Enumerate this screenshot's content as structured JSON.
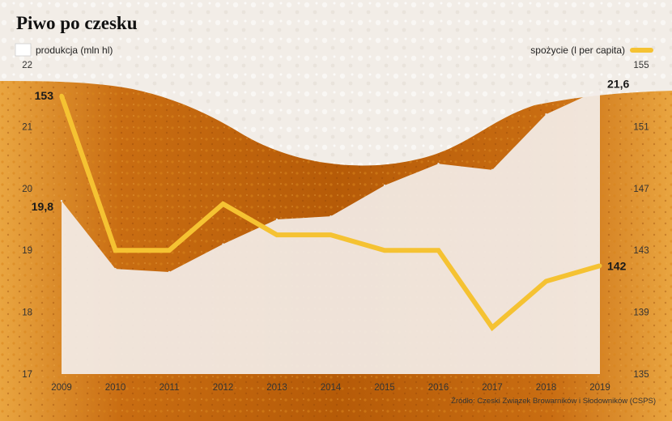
{
  "colors": {
    "beer_dark": "#b55a08",
    "beer_light": "#e39a2e",
    "foam": "#f4efe9",
    "production_area": "#f3ede8",
    "consumption_line": "#f5c232"
  },
  "chart_data": {
    "type": "area+line",
    "title": "Piwo po czesku",
    "categories": [
      "2009",
      "2010",
      "2011",
      "2012",
      "2013",
      "2014",
      "2015",
      "2016",
      "2017",
      "2018",
      "2019"
    ],
    "series": [
      {
        "name": "produkcja (mln hl)",
        "kind": "area",
        "axis": "left",
        "values": [
          19.8,
          18.7,
          18.65,
          19.1,
          19.5,
          19.55,
          20.05,
          20.4,
          20.3,
          21.2,
          21.6
        ]
      },
      {
        "name": "spożycie (l per capita)",
        "kind": "line",
        "axis": "right",
        "values": [
          153,
          143,
          143,
          146,
          144,
          144,
          143,
          143,
          138,
          141,
          142
        ]
      }
    ],
    "left_axis": {
      "ylim": [
        17,
        22
      ],
      "ticks": [
        "17",
        "18",
        "19",
        "20",
        "21",
        "22"
      ]
    },
    "right_axis": {
      "ylim": [
        135,
        155
      ],
      "ticks": [
        "135",
        "139",
        "143",
        "147",
        "151",
        "155"
      ]
    },
    "annotations": {
      "production_start": "19,8",
      "production_end": "21,6",
      "consumption_start": "153",
      "consumption_end": "142"
    },
    "source": "Źródło: Czeski Związek Browarników i Słodowników (CSPS)"
  }
}
